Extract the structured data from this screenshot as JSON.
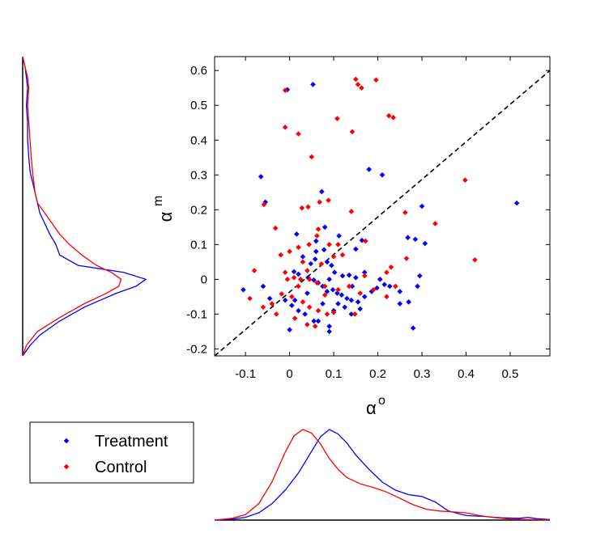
{
  "chart_data": {
    "type": "scatter",
    "title": "",
    "xlabel": "α",
    "xlabel_sup": "o",
    "ylabel": "α",
    "ylabel_sup": "m",
    "xlim": [
      -0.17,
      0.59
    ],
    "ylim": [
      -0.22,
      0.64
    ],
    "xticks": [
      "-0.1",
      "0",
      "0.1",
      "0.2",
      "0.3",
      "0.4",
      "0.5"
    ],
    "xtick_values": [
      -0.1,
      0,
      0.1,
      0.2,
      0.3,
      0.4,
      0.5
    ],
    "yticks": [
      "-0.2",
      "-0.1",
      "0",
      "0.1",
      "0.2",
      "0.3",
      "0.4",
      "0.5",
      "0.6"
    ],
    "ytick_values": [
      -0.2,
      -0.1,
      0,
      0.1,
      0.2,
      0.3,
      0.4,
      0.5,
      0.6
    ],
    "grid": false,
    "reference_line": {
      "style": "dashed",
      "color": "#000000",
      "points": [
        [
          -0.17,
          -0.22
        ],
        [
          0.59,
          0.6
        ]
      ]
    },
    "legend_position": "bottom-left, outside plot",
    "series": [
      {
        "name": "Treatment",
        "color": "#0000ff",
        "points": [
          [
            0.053,
            0.56
          ],
          [
            0.515,
            0.219
          ],
          [
            0.18,
            0.316
          ],
          [
            0.21,
            0.3
          ],
          [
            0.073,
            0.252
          ],
          [
            0.3,
            0.21
          ],
          [
            -0.065,
            0.295
          ],
          [
            -0.055,
            0.222
          ],
          [
            -0.005,
            0.545
          ],
          [
            0.08,
            0.15
          ],
          [
            0.112,
            0.125
          ],
          [
            0.268,
            0.12
          ],
          [
            0.285,
            0.115
          ],
          [
            0.307,
            0.103
          ],
          [
            0.164,
            0.112
          ],
          [
            0.15,
            0.087
          ],
          [
            0.078,
            0.085
          ],
          [
            0.06,
            0.08
          ],
          [
            0.03,
            0.065
          ],
          [
            0.048,
            0.045
          ],
          [
            0.058,
            0.058
          ],
          [
            0.085,
            0.05
          ],
          [
            0.095,
            0.04
          ],
          [
            0.102,
            0.02
          ],
          [
            0.12,
            0.01
          ],
          [
            0.135,
            0.012
          ],
          [
            0.15,
            0.005
          ],
          [
            0.01,
            0.022
          ],
          [
            0.02,
            0.015
          ],
          [
            0.042,
            0.005
          ],
          [
            0.055,
            -0.002
          ],
          [
            0.065,
            -0.01
          ],
          [
            0.075,
            -0.02
          ],
          [
            0.085,
            -0.035
          ],
          [
            0.098,
            -0.03
          ],
          [
            0.108,
            -0.04
          ],
          [
            0.118,
            -0.045
          ],
          [
            0.13,
            -0.055
          ],
          [
            0.14,
            -0.06
          ],
          [
            0.155,
            -0.065
          ],
          [
            0.17,
            -0.05
          ],
          [
            0.186,
            -0.035
          ],
          [
            0.198,
            -0.025
          ],
          [
            0.215,
            -0.015
          ],
          [
            0.227,
            -0.02
          ],
          [
            -0.105,
            -0.03
          ],
          [
            -0.06,
            -0.02
          ],
          [
            -0.045,
            -0.055
          ],
          [
            -0.01,
            -0.06
          ],
          [
            0.005,
            -0.075
          ],
          [
            0.02,
            -0.09
          ],
          [
            0.035,
            -0.1
          ],
          [
            0.055,
            -0.12
          ],
          [
            0.065,
            -0.12
          ],
          [
            0.09,
            -0.135
          ],
          [
            0.09,
            -0.15
          ],
          [
            0.0,
            -0.145
          ],
          [
            0.125,
            -0.08
          ],
          [
            0.14,
            -0.1
          ],
          [
            0.16,
            -0.085
          ],
          [
            0.28,
            -0.14
          ],
          [
            0.27,
            -0.065
          ],
          [
            0.25,
            -0.07
          ],
          [
            0.29,
            -0.02
          ],
          [
            0.295,
            0.01
          ],
          [
            0.25,
            -0.035
          ],
          [
            0.1,
            -0.09
          ],
          [
            0.075,
            -0.07
          ],
          [
            0.11,
            -0.07
          ],
          [
            0.04,
            -0.04
          ],
          [
            0.012,
            -0.06
          ],
          [
            0.17,
            0.02
          ],
          [
            0.142,
            -0.02
          ],
          [
            0.205,
            0.0
          ],
          [
            0.06,
            0.11
          ],
          [
            0.09,
            0.0
          ],
          [
            0.016,
            0.13
          ]
        ]
      },
      {
        "name": "Control",
        "color": "#ff0000",
        "points": [
          [
            0.196,
            0.573
          ],
          [
            0.15,
            0.575
          ],
          [
            0.155,
            0.56
          ],
          [
            -0.01,
            0.543
          ],
          [
            0.163,
            0.55
          ],
          [
            0.225,
            0.47
          ],
          [
            0.235,
            0.465
          ],
          [
            0.108,
            0.462
          ],
          [
            -0.01,
            0.437
          ],
          [
            0.02,
            0.418
          ],
          [
            0.142,
            0.424
          ],
          [
            0.05,
            0.352
          ],
          [
            0.398,
            0.285
          ],
          [
            0.088,
            0.227
          ],
          [
            0.068,
            0.222
          ],
          [
            0.042,
            0.208
          ],
          [
            0.028,
            0.205
          ],
          [
            -0.058,
            0.215
          ],
          [
            0.14,
            0.195
          ],
          [
            0.262,
            0.192
          ],
          [
            0.33,
            0.16
          ],
          [
            -0.032,
            0.147
          ],
          [
            0.065,
            0.144
          ],
          [
            0.172,
            0.11
          ],
          [
            0.42,
            0.056
          ],
          [
            0.062,
            0.125
          ],
          [
            0.11,
            0.1
          ],
          [
            0.09,
            0.1
          ],
          [
            0.044,
            0.1
          ],
          [
            0.02,
            0.092
          ],
          [
            0.0,
            0.08
          ],
          [
            -0.02,
            0.07
          ],
          [
            0.12,
            0.07
          ],
          [
            0.03,
            0.05
          ],
          [
            0.072,
            0.044
          ],
          [
            0.04,
            0.025
          ],
          [
            0.22,
            0.02
          ],
          [
            0.23,
            0.035
          ],
          [
            -0.08,
            0.025
          ],
          [
            -0.01,
            0.02
          ],
          [
            0.01,
            0.005
          ],
          [
            0.025,
            0.0
          ],
          [
            0.045,
            0.0
          ],
          [
            0.062,
            -0.01
          ],
          [
            0.08,
            -0.02
          ],
          [
            0.11,
            -0.03
          ],
          [
            0.135,
            -0.02
          ],
          [
            0.16,
            -0.04
          ],
          [
            0.19,
            -0.03
          ],
          [
            0.22,
            -0.05
          ],
          [
            0.24,
            -0.02
          ],
          [
            -0.09,
            -0.055
          ],
          [
            -0.06,
            -0.08
          ],
          [
            -0.04,
            -0.07
          ],
          [
            -0.018,
            -0.042
          ],
          [
            0.005,
            -0.05
          ],
          [
            0.03,
            -0.065
          ],
          [
            0.045,
            -0.08
          ],
          [
            0.065,
            -0.09
          ],
          [
            0.085,
            -0.1
          ],
          [
            0.1,
            -0.095
          ],
          [
            0.148,
            -0.1
          ],
          [
            0.012,
            -0.112
          ],
          [
            -0.03,
            -0.1
          ],
          [
            0.058,
            -0.135
          ],
          [
            0.04,
            -0.13
          ],
          [
            0.265,
            0.06
          ],
          [
            0.1,
            0.065
          ],
          [
            0.17,
            0.01
          ],
          [
            0.08,
            -0.045
          ],
          [
            0.02,
            -0.02
          ],
          [
            -0.005,
            0.0
          ]
        ]
      }
    ],
    "marginal_x": {
      "xlim": [
        -0.17,
        0.59
      ],
      "series": [
        {
          "name": "Treatment",
          "color": "#0000ff",
          "x": [
            -0.17,
            -0.13,
            -0.1,
            -0.07,
            -0.04,
            -0.01,
            0.02,
            0.05,
            0.07,
            0.09,
            0.11,
            0.13,
            0.15,
            0.18,
            0.21,
            0.24,
            0.27,
            0.3,
            0.33,
            0.36,
            0.4,
            0.44,
            0.48,
            0.52,
            0.54,
            0.56,
            0.59
          ],
          "density": [
            0.0,
            0.01,
            0.03,
            0.08,
            0.18,
            0.33,
            0.52,
            0.76,
            0.92,
            1.0,
            0.95,
            0.85,
            0.72,
            0.56,
            0.42,
            0.33,
            0.28,
            0.26,
            0.2,
            0.1,
            0.05,
            0.04,
            0.025,
            0.02,
            0.03,
            0.015,
            0.005
          ]
        },
        {
          "name": "Control",
          "color": "#ff0000",
          "x": [
            -0.17,
            -0.13,
            -0.1,
            -0.07,
            -0.04,
            -0.01,
            0.01,
            0.03,
            0.05,
            0.07,
            0.09,
            0.11,
            0.13,
            0.16,
            0.19,
            0.22,
            0.25,
            0.28,
            0.31,
            0.34,
            0.37,
            0.4,
            0.43,
            0.46,
            0.5,
            0.55,
            0.59
          ],
          "density": [
            0.0,
            0.02,
            0.06,
            0.18,
            0.42,
            0.75,
            0.93,
            1.0,
            0.96,
            0.84,
            0.68,
            0.56,
            0.47,
            0.4,
            0.36,
            0.31,
            0.24,
            0.17,
            0.12,
            0.1,
            0.09,
            0.08,
            0.05,
            0.03,
            0.01,
            0.005,
            0.0
          ]
        }
      ]
    },
    "marginal_y": {
      "ylim": [
        -0.22,
        0.64
      ],
      "series": [
        {
          "name": "Treatment",
          "color": "#0000ff",
          "y": [
            -0.22,
            -0.19,
            -0.16,
            -0.12,
            -0.08,
            -0.04,
            -0.02,
            0.0,
            0.02,
            0.04,
            0.07,
            0.1,
            0.13,
            0.16,
            0.19,
            0.22,
            0.25,
            0.28,
            0.31,
            0.35,
            0.4,
            0.45,
            0.5,
            0.55,
            0.58,
            0.61,
            0.64
          ],
          "density": [
            0.0,
            0.06,
            0.14,
            0.3,
            0.5,
            0.76,
            0.92,
            1.0,
            0.82,
            0.45,
            0.3,
            0.27,
            0.22,
            0.18,
            0.14,
            0.12,
            0.1,
            0.08,
            0.06,
            0.05,
            0.04,
            0.04,
            0.03,
            0.04,
            0.03,
            0.02,
            0.0
          ]
        },
        {
          "name": "Control",
          "color": "#ff0000",
          "y": [
            -0.22,
            -0.19,
            -0.15,
            -0.11,
            -0.07,
            -0.04,
            -0.02,
            0.0,
            0.02,
            0.04,
            0.07,
            0.1,
            0.13,
            0.16,
            0.19,
            0.22,
            0.25,
            0.28,
            0.31,
            0.35,
            0.4,
            0.45,
            0.5,
            0.55,
            0.58,
            0.61,
            0.64
          ],
          "density": [
            0.0,
            0.03,
            0.12,
            0.3,
            0.5,
            0.68,
            0.78,
            0.8,
            0.72,
            0.6,
            0.48,
            0.38,
            0.3,
            0.24,
            0.18,
            0.12,
            0.1,
            0.09,
            0.08,
            0.07,
            0.06,
            0.05,
            0.04,
            0.05,
            0.04,
            0.02,
            0.0
          ]
        }
      ]
    }
  }
}
